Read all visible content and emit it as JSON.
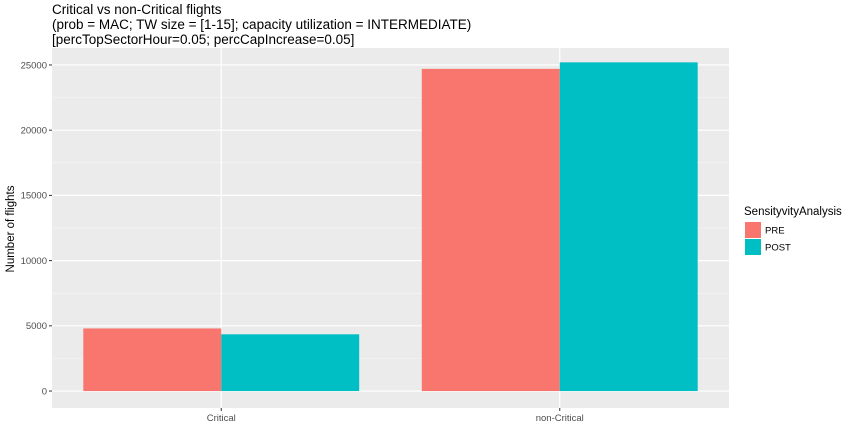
{
  "chart_data": {
    "type": "bar",
    "title": "Critical vs non-Critical flights",
    "subtitle": [
      "(prob = MAC; TW size = [1-15]; capacity utilization = INTERMEDIATE)",
      "[percTopSectorHour=0.05; percCapIncrease=0.05]"
    ],
    "xlabel": "",
    "ylabel": "Number of flights",
    "categories": [
      "Critical",
      "non-Critical"
    ],
    "series": [
      {
        "name": "PRE",
        "values": [
          4800,
          24700
        ],
        "color": "#F8766D"
      },
      {
        "name": "POST",
        "values": [
          4350,
          25200
        ],
        "color": "#00BFC4"
      }
    ],
    "ylim": [
      -1300,
      26300
    ],
    "yticks": [
      0,
      5000,
      10000,
      15000,
      20000,
      25000
    ],
    "legend": {
      "title": "SensityvityAnalysis",
      "position": "right"
    },
    "grid": true,
    "panel_background": "#EBEBEB"
  }
}
